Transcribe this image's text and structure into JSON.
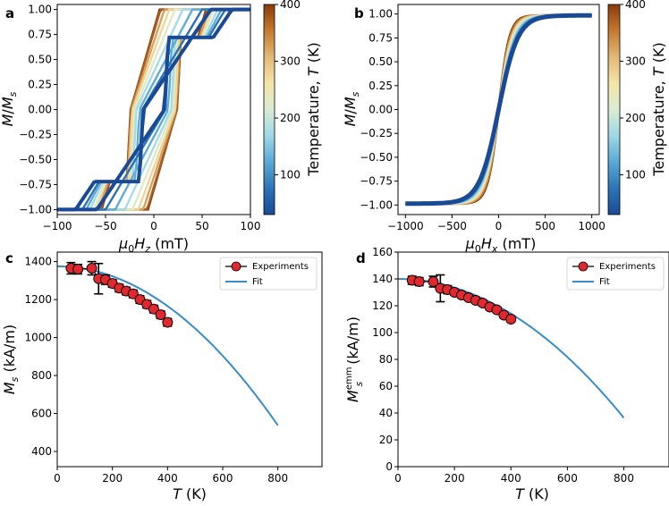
{
  "figure": {
    "panels": [
      {
        "label": "a",
        "xlabel": "μ₀H_z (mT)",
        "ylabel": "M/M_s",
        "colorbar": {
          "label": "Temperature, T (K)",
          "ticks": [
            "100",
            "200",
            "300",
            "400"
          ],
          "range": [
            30,
            400
          ]
        }
      },
      {
        "label": "b",
        "xlabel": "μ₀H_x (mT)",
        "ylabel": "M/M_s",
        "colorbar": {
          "label": "Temperature, T (K)",
          "ticks": [
            "100",
            "200",
            "300",
            "400"
          ],
          "range": [
            30,
            400
          ]
        }
      },
      {
        "label": "c",
        "xlabel": "T (K)",
        "ylabel": "M_s (kA/m)"
      },
      {
        "label": "d",
        "xlabel": "T (K)",
        "ylabel": "M_s^emm (kA/m)"
      }
    ],
    "legend": {
      "experiments": "Experiments",
      "fit": "Fit"
    },
    "colors": {
      "marker_fill": "#e0282e",
      "fit_line": "#3a8cc9",
      "colormap": [
        "#1a4a96",
        "#2c74b6",
        "#5aa9d6",
        "#9ed8e6",
        "#d9ecd2",
        "#f4e4a8",
        "#e2b978",
        "#c57a2e",
        "#8a3a0c"
      ]
    }
  },
  "chart_data": [
    {
      "panel": "a",
      "type": "line",
      "title": "",
      "xlabel": "μ0Hz (mT)",
      "ylabel": "M/Ms",
      "xlim": [
        -100,
        100
      ],
      "ylim": [
        -1.05,
        1.05
      ],
      "xticks": [
        -100,
        -50,
        0,
        50,
        100
      ],
      "yticks": [
        -1.0,
        -0.75,
        -0.5,
        -0.25,
        0.0,
        0.25,
        0.5,
        0.75,
        1.0
      ],
      "ytick_labels": [
        "−1.00",
        "−0.75",
        "−0.50",
        "−0.25",
        "0.00",
        "0.25",
        "0.50",
        "0.75",
        "1.00"
      ],
      "series": [
        {
          "temperature": 30,
          "coercive_field": 11,
          "saturation_field": 70,
          "slope": 0.0125
        },
        {
          "temperature": 75,
          "coercive_field": 12,
          "saturation_field": 62,
          "slope": 0.013
        },
        {
          "temperature": 125,
          "coercive_field": 15,
          "saturation_field": 55,
          "slope": 0.0135
        },
        {
          "temperature": 175,
          "coercive_field": 18,
          "saturation_field": 48,
          "slope": 0.014
        },
        {
          "temperature": 225,
          "coercive_field": 20,
          "saturation_field": 42,
          "slope": 0.0145
        },
        {
          "temperature": 275,
          "coercive_field": 22,
          "saturation_field": 38,
          "slope": 0.015
        },
        {
          "temperature": 325,
          "coercive_field": 23,
          "saturation_field": 34,
          "slope": 0.0155
        },
        {
          "temperature": 375,
          "coercive_field": 24,
          "saturation_field": 31,
          "slope": 0.016
        },
        {
          "temperature": 400,
          "coercive_field": 24,
          "saturation_field": 30,
          "slope": 0.016
        }
      ]
    },
    {
      "panel": "b",
      "type": "line",
      "title": "",
      "xlabel": "μ0Hx (mT)",
      "ylabel": "M/Ms",
      "xlim": [
        -1080,
        1080
      ],
      "ylim": [
        -1.1,
        1.1
      ],
      "xticks": [
        -1000,
        -500,
        0,
        500,
        1000
      ],
      "yticks": [
        -1.0,
        -0.75,
        -0.5,
        -0.25,
        0.0,
        0.25,
        0.5,
        0.75,
        1.0
      ],
      "ytick_labels": [
        "−1.00",
        "−0.75",
        "−0.50",
        "−0.25",
        "0.00",
        "0.25",
        "0.50",
        "0.75",
        "1.00"
      ],
      "series": [
        {
          "temperature": 30,
          "width_mT": 330
        },
        {
          "temperature": 100,
          "width_mT": 300
        },
        {
          "temperature": 150,
          "width_mT": 280
        },
        {
          "temperature": 200,
          "width_mT": 260
        },
        {
          "temperature": 250,
          "width_mT": 240
        },
        {
          "temperature": 300,
          "width_mT": 220
        },
        {
          "temperature": 350,
          "width_mT": 200
        },
        {
          "temperature": 400,
          "width_mT": 185
        }
      ]
    },
    {
      "panel": "c",
      "type": "scatter",
      "title": "",
      "xlabel": "T (K)",
      "ylabel": "Ms (kA/m)",
      "xlim": [
        0,
        960
      ],
      "ylim": [
        320,
        1450
      ],
      "xticks": [
        0,
        200,
        400,
        600,
        800
      ],
      "yticks": [
        400,
        600,
        800,
        1000,
        1200,
        1400
      ],
      "legend_position": "top-right",
      "experiments": {
        "x": [
          50,
          75,
          125,
          150,
          175,
          200,
          225,
          250,
          275,
          300,
          325,
          350,
          375,
          400
        ],
        "y": [
          1365,
          1360,
          1365,
          1310,
          1305,
          1285,
          1260,
          1245,
          1230,
          1200,
          1175,
          1150,
          1120,
          1080
        ],
        "err": [
          30,
          25,
          35,
          80,
          25,
          20,
          20,
          20,
          20,
          20,
          20,
          20,
          20,
          20
        ]
      },
      "fit": {
        "M0": 1375,
        "Tc": 1025,
        "exponent": 2,
        "x_range": [
          0,
          800
        ]
      }
    },
    {
      "panel": "d",
      "type": "scatter",
      "title": "",
      "xlabel": "T (K)",
      "ylabel": "Ms emm (kA/m)",
      "xlim": [
        0,
        960
      ],
      "ylim": [
        0,
        160
      ],
      "xticks": [
        0,
        200,
        400,
        600,
        800
      ],
      "yticks": [
        0,
        20,
        40,
        60,
        80,
        100,
        120,
        140,
        160
      ],
      "legend_position": "top-right",
      "experiments": {
        "x": [
          50,
          75,
          125,
          150,
          175,
          200,
          225,
          250,
          275,
          300,
          325,
          350,
          375,
          400
        ],
        "y": [
          139,
          138,
          138,
          133,
          132,
          130,
          128,
          126,
          124,
          122,
          119,
          117,
          113,
          110
        ],
        "err": [
          3,
          3,
          4,
          10,
          3,
          2,
          2,
          2,
          2,
          2,
          2,
          2,
          2,
          2
        ]
      },
      "fit": {
        "M0": 140,
        "Tc": 930,
        "exponent": 2,
        "x_range": [
          0,
          800
        ]
      }
    }
  ]
}
